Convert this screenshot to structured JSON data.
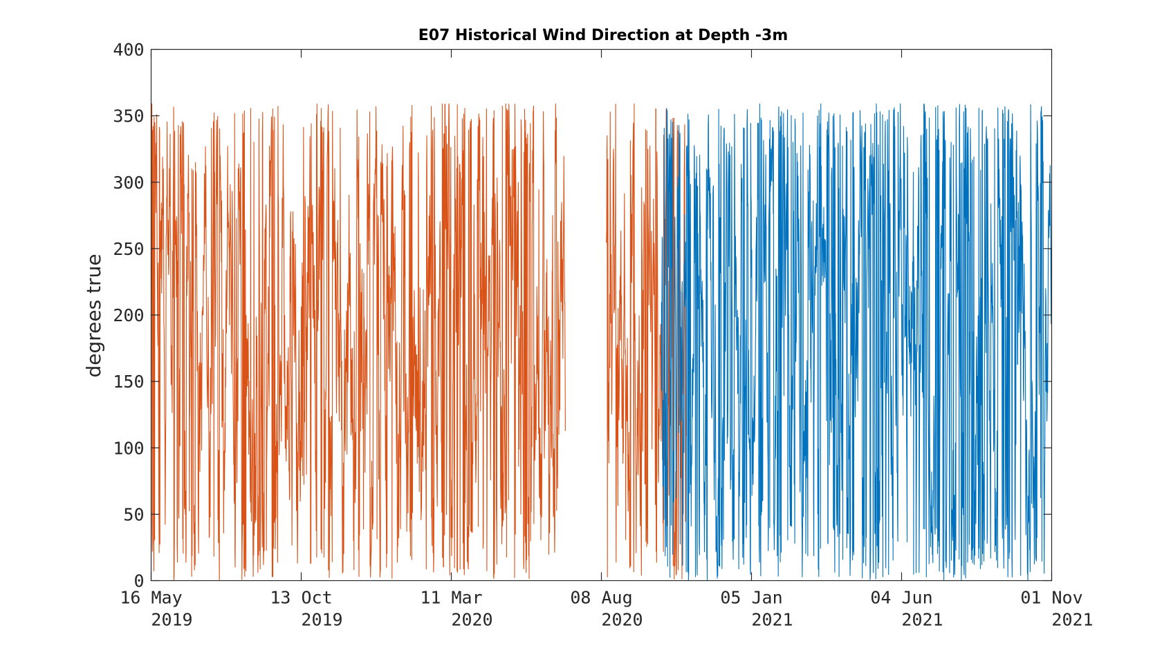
{
  "chart_data": {
    "type": "line",
    "title": "E07 Historical Wind Direction at Depth -3m",
    "xlabel": "",
    "ylabel": "degrees true",
    "xlim": [
      "2019-05-16",
      "2021-11-01"
    ],
    "ylim": [
      0,
      400
    ],
    "yticks": [
      0,
      50,
      100,
      150,
      200,
      250,
      300,
      350,
      400
    ],
    "xticks": [
      {
        "date": "2019-05-16",
        "line1": "16 May",
        "line2": "2019"
      },
      {
        "date": "2019-10-13",
        "line1": "13 Oct",
        "line2": "2019"
      },
      {
        "date": "2020-03-11",
        "line1": "11 Mar",
        "line2": "2020"
      },
      {
        "date": "2020-08-08",
        "line1": "08 Aug",
        "line2": "2020"
      },
      {
        "date": "2021-01-05",
        "line1": "05 Jan",
        "line2": "2021"
      },
      {
        "date": "2021-06-04",
        "line1": "04 Jun",
        "line2": "2021"
      },
      {
        "date": "2021-11-01",
        "line1": "01 Nov",
        "line2": "2021"
      }
    ],
    "grid": false,
    "series": [
      {
        "color": "#D95319",
        "segments": [
          {
            "start": "2019-05-16",
            "end": "2020-07-03"
          },
          {
            "start": "2020-08-13",
            "end": "2020-11-01"
          }
        ],
        "value_range": [
          0,
          359
        ]
      },
      {
        "color": "#0072BD",
        "segments": [
          {
            "start": "2020-10-07",
            "end": "2021-11-01"
          }
        ],
        "value_range": [
          0,
          359
        ]
      }
    ]
  }
}
